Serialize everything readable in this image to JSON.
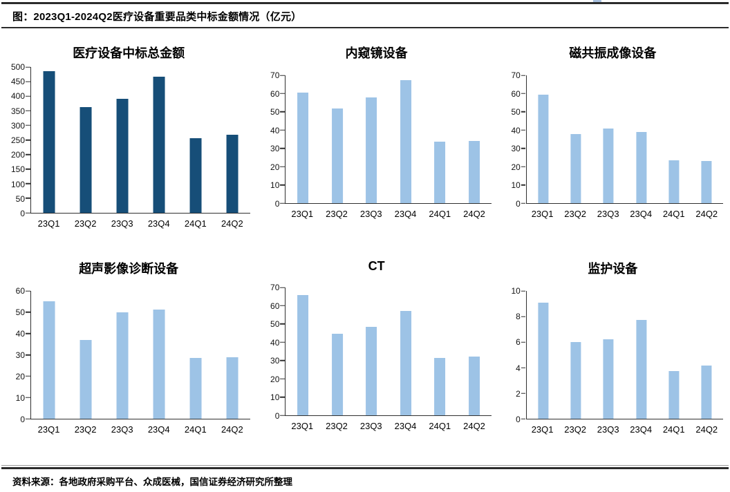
{
  "page": {
    "figure_title": "图：2023Q1-2024Q2医疗设备重要品类中标金额情况（亿元）",
    "source_note": "资料来源：各地政府采购平台、众成医械，国信证券经济研究所整理"
  },
  "colors": {
    "dark_bar": "#164E78",
    "light_bar": "#9DC3E6",
    "axis": "#2F2F2F",
    "rule": "#2B2B2B"
  },
  "chart_data": [
    {
      "type": "bar",
      "title": "医疗设备中标总金额",
      "categories": [
        "23Q1",
        "23Q2",
        "23Q3",
        "23Q4",
        "24Q1",
        "24Q2"
      ],
      "values": [
        485,
        363,
        390,
        467,
        255,
        267
      ],
      "ylim": [
        0,
        500
      ],
      "ytick_step": 50,
      "bar_color": "#164E78",
      "grid": false
    },
    {
      "type": "bar",
      "title": "内窥镜设备",
      "categories": [
        "23Q1",
        "23Q2",
        "23Q3",
        "23Q4",
        "24Q1",
        "24Q2"
      ],
      "values": [
        60.5,
        52,
        58,
        67.5,
        33.5,
        34
      ],
      "ylim": [
        0,
        70
      ],
      "ytick_step": 10,
      "bar_color": "#9DC3E6",
      "grid": false
    },
    {
      "type": "bar",
      "title": "磁共振成像设备",
      "categories": [
        "23Q1",
        "23Q2",
        "23Q3",
        "23Q4",
        "24Q1",
        "24Q2"
      ],
      "values": [
        59.5,
        38,
        41,
        39,
        23.5,
        23
      ],
      "ylim": [
        0,
        70
      ],
      "ytick_step": 10,
      "bar_color": "#9DC3E6",
      "grid": false
    },
    {
      "type": "bar",
      "title": "超声影像诊断设备",
      "categories": [
        "23Q1",
        "23Q2",
        "23Q3",
        "23Q4",
        "24Q1",
        "24Q2"
      ],
      "values": [
        55,
        37,
        49.8,
        51.4,
        28.7,
        29
      ],
      "ylim": [
        0,
        60
      ],
      "ytick_step": 10,
      "bar_color": "#9DC3E6",
      "grid": false
    },
    {
      "type": "bar",
      "title": "CT",
      "categories": [
        "23Q1",
        "23Q2",
        "23Q3",
        "23Q4",
        "24Q1",
        "24Q2"
      ],
      "values": [
        66,
        44.5,
        48.3,
        57,
        31.5,
        32.3
      ],
      "ylim": [
        0,
        70
      ],
      "ytick_step": 10,
      "bar_color": "#9DC3E6",
      "grid": false
    },
    {
      "type": "bar",
      "title": "监护设备",
      "categories": [
        "23Q1",
        "23Q2",
        "23Q3",
        "23Q4",
        "24Q1",
        "24Q2"
      ],
      "values": [
        9.1,
        6.0,
        6.2,
        7.75,
        3.75,
        4.15
      ],
      "ylim": [
        0,
        10
      ],
      "ytick_step": 2,
      "bar_color": "#9DC3E6",
      "grid": false
    }
  ]
}
